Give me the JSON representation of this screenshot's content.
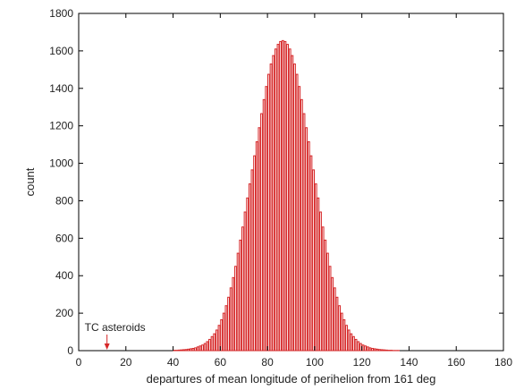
{
  "chart_data": {
    "type": "bar",
    "subtype": "histogram",
    "title": "",
    "xlabel": "departures of mean longitude of perihelion from 161 deg",
    "ylabel": "count",
    "xlim": [
      0,
      180
    ],
    "ylim": [
      0,
      1800
    ],
    "xticks": [
      0,
      20,
      40,
      60,
      80,
      100,
      120,
      140,
      160,
      180
    ],
    "yticks": [
      0,
      200,
      400,
      600,
      800,
      1000,
      1200,
      1400,
      1600,
      1800
    ],
    "grid": false,
    "legend": "none",
    "bar_color": "#d62728",
    "bin_width": 1,
    "bins_left_edges": [
      40,
      41,
      42,
      43,
      44,
      45,
      46,
      47,
      48,
      49,
      50,
      51,
      52,
      53,
      54,
      55,
      56,
      57,
      58,
      59,
      60,
      61,
      62,
      63,
      64,
      65,
      66,
      67,
      68,
      69,
      70,
      71,
      72,
      73,
      74,
      75,
      76,
      77,
      78,
      79,
      80,
      81,
      82,
      83,
      84,
      85,
      86,
      87,
      88,
      89,
      90,
      91,
      92,
      93,
      94,
      95,
      96,
      97,
      98,
      99,
      100,
      101,
      102,
      103,
      104,
      105,
      106,
      107,
      108,
      109,
      110,
      111,
      112,
      113,
      114,
      115,
      116,
      117,
      118,
      119,
      120,
      121,
      122,
      123,
      124,
      125,
      126,
      127,
      128,
      129,
      130,
      131,
      132,
      133,
      134,
      135
    ],
    "values": [
      2,
      2,
      3,
      4,
      5,
      6,
      8,
      10,
      12,
      15,
      20,
      25,
      30,
      38,
      48,
      60,
      75,
      90,
      110,
      135,
      165,
      200,
      240,
      285,
      335,
      390,
      450,
      520,
      590,
      660,
      740,
      815,
      890,
      965,
      1040,
      1115,
      1190,
      1265,
      1340,
      1410,
      1475,
      1530,
      1575,
      1610,
      1635,
      1650,
      1655,
      1650,
      1635,
      1610,
      1575,
      1530,
      1475,
      1410,
      1340,
      1265,
      1190,
      1115,
      1040,
      965,
      890,
      815,
      740,
      660,
      590,
      520,
      450,
      390,
      335,
      285,
      240,
      200,
      165,
      135,
      110,
      90,
      75,
      60,
      48,
      38,
      30,
      25,
      20,
      15,
      12,
      10,
      8,
      6,
      5,
      4,
      3,
      2,
      2,
      1,
      1,
      1
    ],
    "annotations": [
      {
        "text": "TC asteroids",
        "x": 12,
        "arrow": true
      }
    ]
  }
}
